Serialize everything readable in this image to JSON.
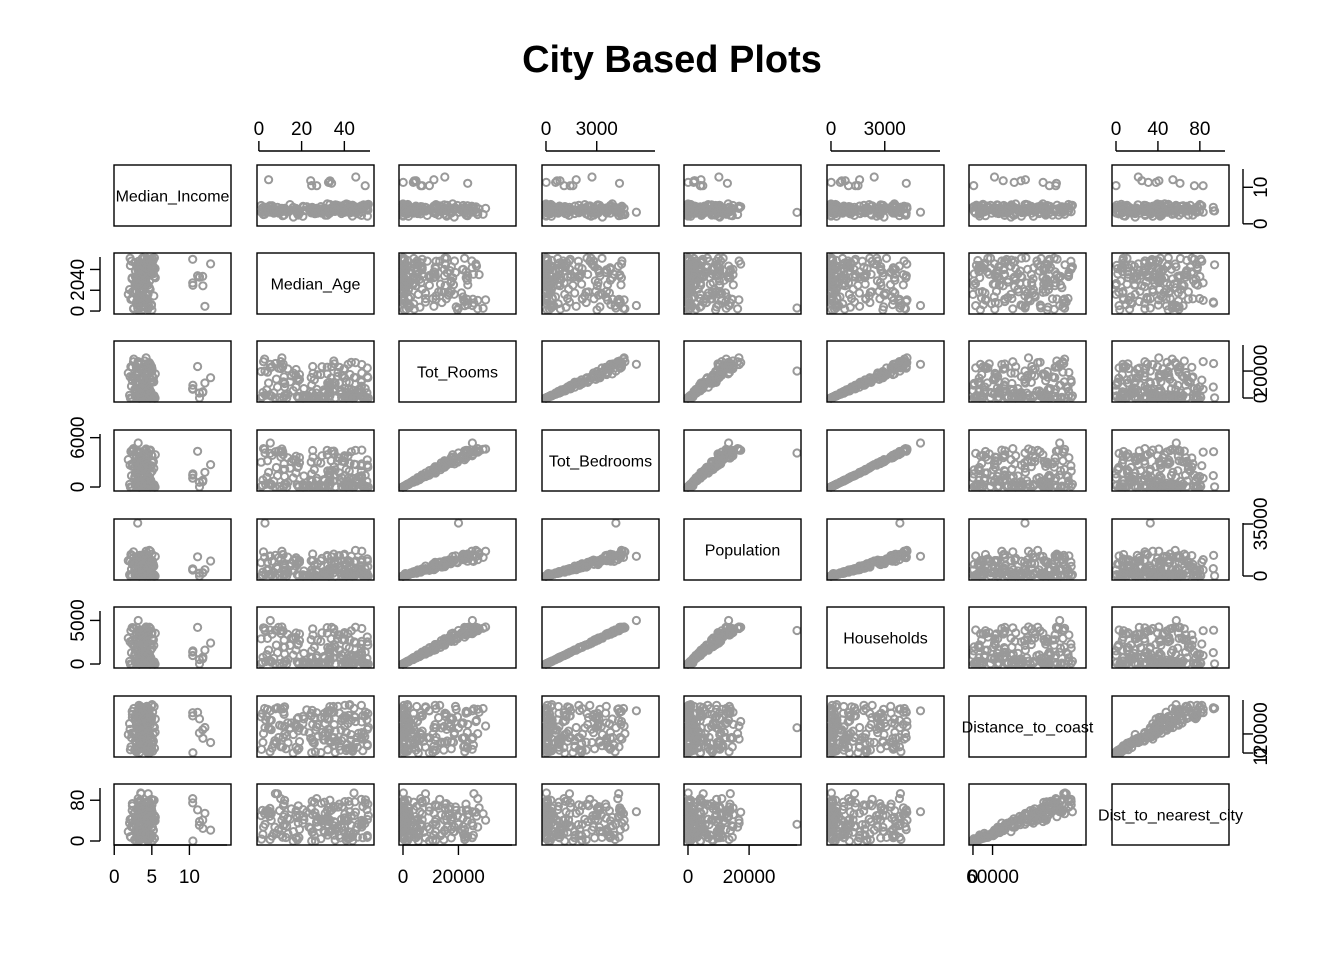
{
  "chart_data": {
    "type": "scatter",
    "title": "City Based Plots",
    "point_color": "#999999",
    "variables": [
      {
        "name": "Median_Income",
        "range": [
          0.5,
          15
        ],
        "ticks": [
          0,
          5,
          10
        ],
        "ticks_right": [
          0,
          10
        ]
      },
      {
        "name": "Median_Age",
        "range": [
          1,
          52
        ],
        "ticks": [
          0,
          20,
          40
        ]
      },
      {
        "name": "Tot_Rooms",
        "range": [
          2,
          39320
        ],
        "ticks": [
          0,
          20000
        ]
      },
      {
        "name": "Tot_Bedrooms",
        "range": [
          1,
          6445
        ],
        "ticks": [
          0,
          3000
        ],
        "ticks_left": [
          0,
          6000
        ]
      },
      {
        "name": "Population",
        "range": [
          3,
          35682
        ],
        "ticks": [
          0,
          20000
        ],
        "ticks_right": [
          0,
          35000
        ]
      },
      {
        "name": "Households",
        "range": [
          1,
          6082
        ],
        "ticks": [
          0,
          3000
        ],
        "ticks_left": [
          0,
          5000
        ]
      },
      {
        "name": "Distance_to_coast",
        "range": [
          120,
          333800
        ],
        "ticks": [
          0,
          60000
        ],
        "ticks_right": [
          0,
          120000
        ]
      },
      {
        "name": "Dist_to_nearest_city",
        "range": [
          0,
          104
        ],
        "ticks": [
          0,
          40,
          80
        ],
        "ticks_left": [
          0,
          80
        ]
      }
    ],
    "bottom_axes": [
      0,
      2,
      4,
      6
    ],
    "top_axes": [
      1,
      3,
      5,
      7
    ],
    "left_axes": [
      1,
      3,
      5,
      7
    ],
    "right_axes": [
      0,
      2,
      4,
      6
    ],
    "grid": false,
    "legend": "none"
  }
}
